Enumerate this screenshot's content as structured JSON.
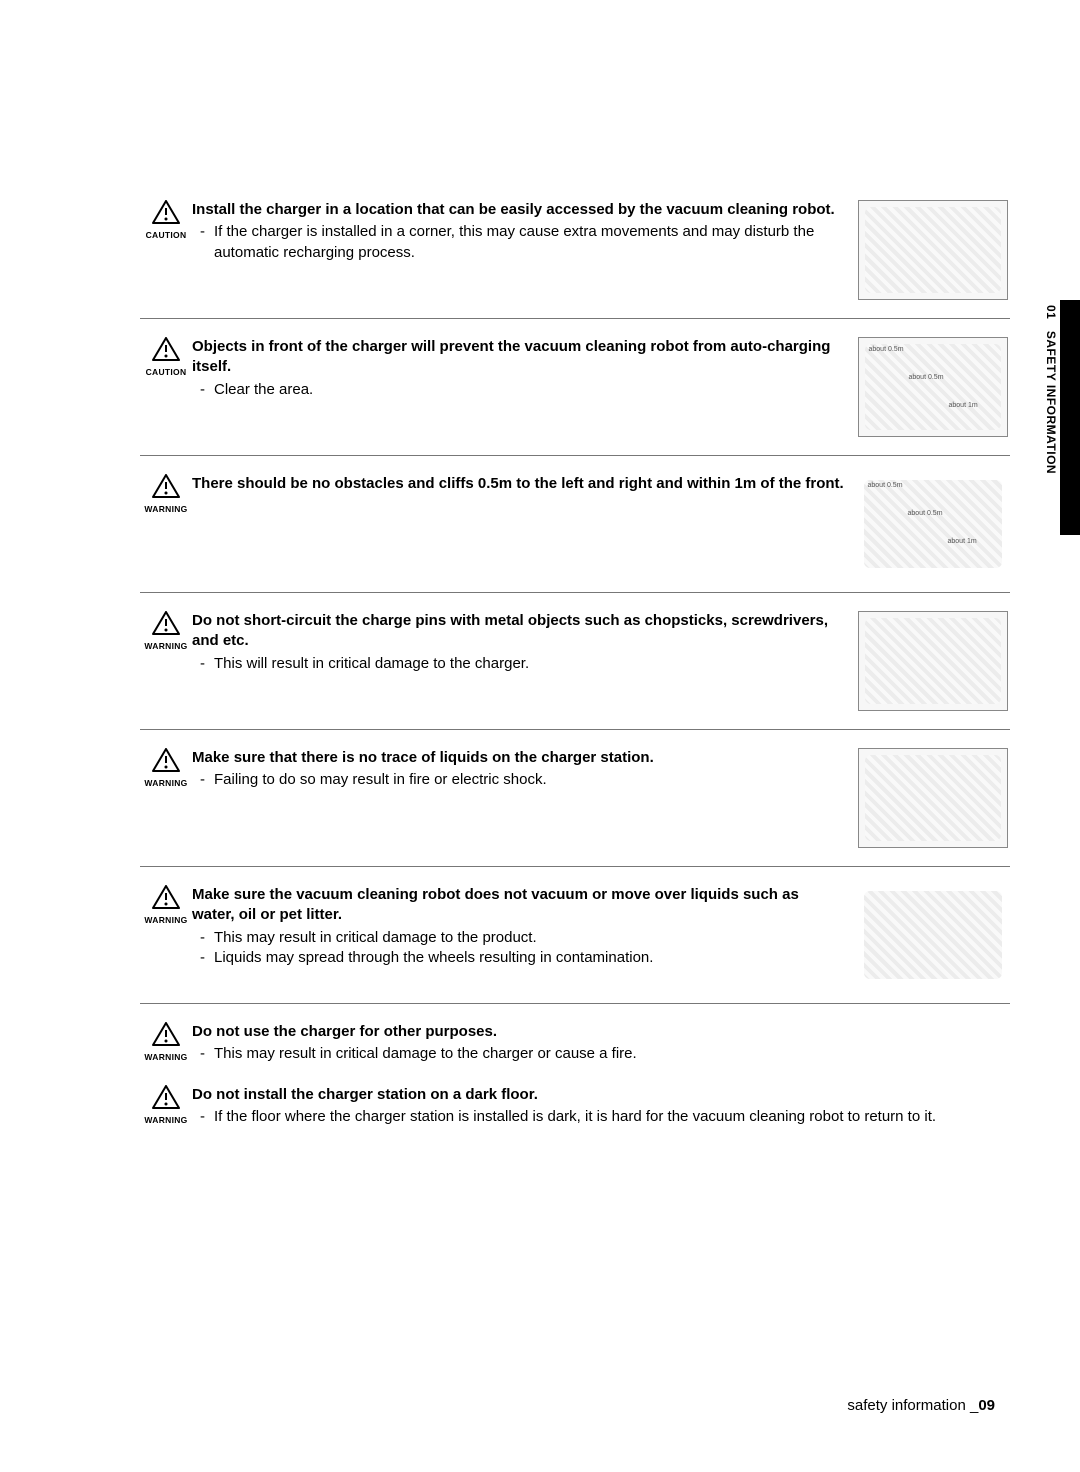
{
  "colors": {
    "text": "#000000",
    "background": "#ffffff",
    "divider": "#777777",
    "placeholder_a": "#ececec",
    "placeholder_b": "#f9f9f9",
    "illus_border": "#888888"
  },
  "typography": {
    "body_fontsize_pt": 11,
    "heading_weight": "bold",
    "icon_label_fontsize_pt": 6.5,
    "sidetab_fontsize_pt": 9,
    "footer_fontsize_pt": 11
  },
  "sidetab": {
    "number": "01",
    "label": "SAFETY INFORMATION"
  },
  "icons": {
    "caution": "CAUTION",
    "warning": "WARNING"
  },
  "items": [
    {
      "level": "caution",
      "heading": "Install the charger in a location that can be easily accessed by the vacuum cleaning robot.",
      "bullets": [
        "If the charger is installed in a corner, this may cause extra movements and may disturb the automatic recharging process."
      ],
      "illustration": {
        "framed": true,
        "alt": "robot-in-corner-question",
        "labels": []
      }
    },
    {
      "level": "caution",
      "heading": "Objects in front of the charger will prevent the vacuum cleaning robot from auto-charging itself.",
      "bullets": [
        "Clear the area."
      ],
      "illustration": {
        "framed": true,
        "alt": "clearance-arcs",
        "labels": [
          "about 0.5m",
          "about 0.5m",
          "about 1m"
        ]
      }
    },
    {
      "level": "warning",
      "heading": "There should be no obstacles and cliffs 0.5m to the left and right and within 1m of the front.",
      "bullets": [],
      "illustration": {
        "framed": false,
        "alt": "charger-clearance",
        "labels": [
          "about 0.5m",
          "about 0.5m",
          "about 1m"
        ]
      }
    },
    {
      "level": "warning",
      "heading": "Do not short-circuit the charge pins with metal objects such as chopsticks, screwdrivers, and etc.",
      "bullets": [
        "This will result in critical damage to the charger."
      ],
      "illustration": {
        "framed": true,
        "alt": "screwdriver-on-pins",
        "labels": []
      }
    },
    {
      "level": "warning",
      "heading": "Make sure that there is no trace of liquids on the charger station.",
      "bullets": [
        "Failing to do so may result in fire or electric shock."
      ],
      "illustration": {
        "framed": true,
        "alt": "no-liquid-on-charger",
        "labels": []
      }
    },
    {
      "level": "warning",
      "heading": "Make sure the vacuum cleaning robot does not vacuum or move over liquids such as water, oil or pet litter.",
      "bullets": [
        "This may result in critical damage to the product.",
        "Liquids may spread through the wheels resulting in contamination."
      ],
      "illustration": {
        "framed": false,
        "alt": "robot-over-liquid-x",
        "labels": []
      }
    },
    {
      "level": "warning",
      "heading": "Do not use the charger for other purposes.",
      "bullets": [
        "This may result in critical damage to the charger or cause a fire."
      ],
      "illustration": null
    },
    {
      "level": "warning",
      "heading": "Do not install the charger station on a dark floor.",
      "bullets": [
        "If the floor where the charger station is installed is dark, it is hard for the vacuum cleaning robot to return to it."
      ],
      "illustration": null
    }
  ],
  "footer": {
    "text": "safety information _",
    "page": "09"
  }
}
